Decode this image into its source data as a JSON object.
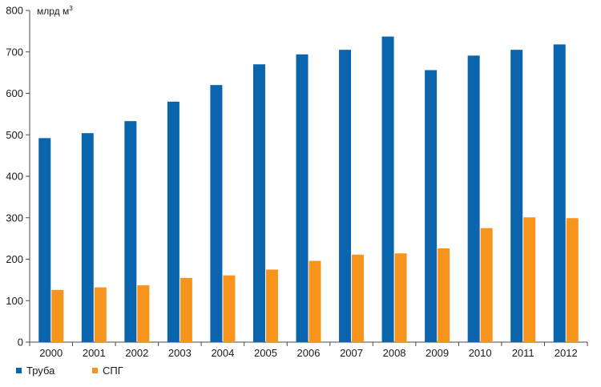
{
  "chart_data": {
    "type": "bar",
    "unit_label": "млрд м",
    "unit_superscript": "3",
    "categories": [
      "2000",
      "2001",
      "2002",
      "2003",
      "2004",
      "2005",
      "2006",
      "2007",
      "2008",
      "2009",
      "2010",
      "2011",
      "2012"
    ],
    "series": [
      {
        "name": "Труба",
        "color": "#0a64ae",
        "values": [
          492,
          504,
          533,
          580,
          620,
          670,
          694,
          705,
          737,
          656,
          691,
          705,
          718
        ]
      },
      {
        "name": "СПГ",
        "color": "#f7941d",
        "values": [
          126,
          132,
          137,
          155,
          161,
          175,
          196,
          211,
          214,
          226,
          275,
          301,
          299
        ]
      }
    ],
    "ylim": [
      0,
      800
    ],
    "yticks": [
      0,
      100,
      200,
      300,
      400,
      500,
      600,
      700,
      800
    ],
    "grid": false,
    "legend_position": "bottom-left"
  }
}
